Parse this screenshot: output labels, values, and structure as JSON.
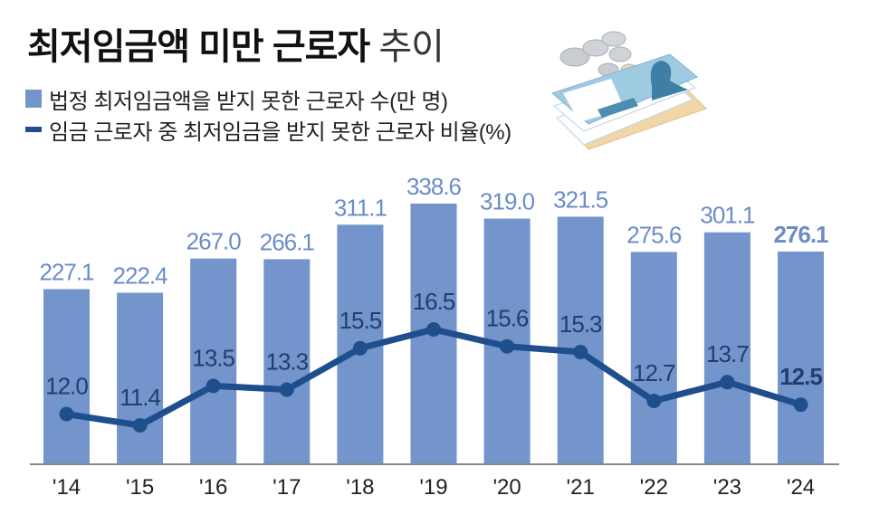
{
  "title": {
    "bold": "최저임금액 미만 근로자",
    "light": "추이"
  },
  "legend": [
    {
      "type": "bar",
      "label": "법정 최저임금액을 받지 못한 근로자 수(만 명)",
      "color": "#7395cc"
    },
    {
      "type": "line",
      "label": "임금 근로자 중 최저임금을 받지 못한 근로자 비율(%)",
      "color": "#1f4e8c"
    }
  ],
  "illustration": {
    "icon": "money-bills-coins-icon"
  },
  "colors": {
    "bar": "#7395cc",
    "bar_label": "#6c8cc6",
    "line": "#1f4e8c",
    "line_label": "#1f3f6e",
    "axis": "#888888"
  },
  "chart_data": {
    "type": "bar+line",
    "title": "최저임금액 미만 근로자 추이",
    "categories": [
      "'14",
      "'15",
      "'16",
      "'17",
      "'18",
      "'19",
      "'20",
      "'21",
      "'22",
      "'23",
      "'24"
    ],
    "series": [
      {
        "name": "법정 최저임금액을 받지 못한 근로자 수(만 명)",
        "type": "bar",
        "values": [
          227.1,
          222.4,
          267.0,
          266.1,
          311.1,
          338.6,
          319.0,
          321.5,
          275.6,
          301.1,
          276.1
        ],
        "labels": [
          "227.1",
          "222.4",
          "267.0",
          "266.1",
          "311.1",
          "338.6",
          "319.0",
          "321.5",
          "275.6",
          "301.1",
          "276.1"
        ]
      },
      {
        "name": "임금 근로자 중 최저임금을 받지 못한 근로자 비율(%)",
        "type": "line",
        "values": [
          12.0,
          11.4,
          13.5,
          13.3,
          15.5,
          16.5,
          15.6,
          15.3,
          12.7,
          13.7,
          12.5
        ],
        "labels": [
          "12.0",
          "11.4",
          "13.5",
          "13.3",
          "15.5",
          "16.5",
          "15.6",
          "15.3",
          "12.7",
          "13.7",
          "12.5"
        ]
      }
    ],
    "xlabel": "",
    "ylabel": "",
    "grid": false,
    "legend_position": "top-left",
    "highlight_last": true
  }
}
